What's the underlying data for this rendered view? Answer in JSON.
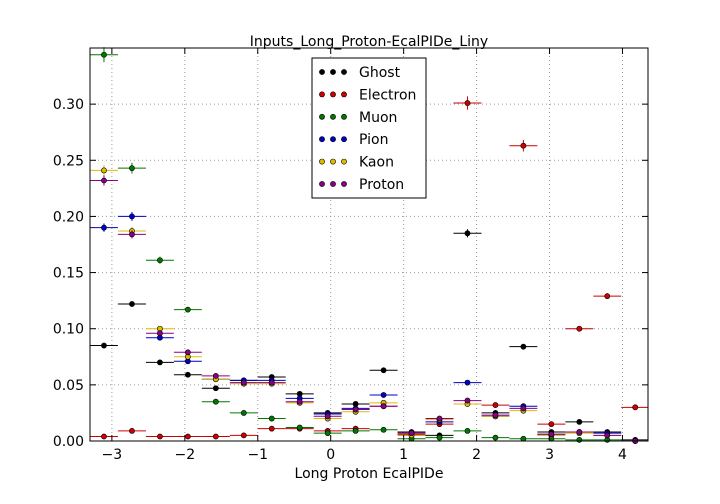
{
  "chart_data": {
    "type": "scatter",
    "title": "Inputs_Long_Proton-EcalPIDe_Liny",
    "xlabel": "Long Proton EcalPIDe",
    "ylabel": "",
    "xlim": [
      -3.3,
      4.35
    ],
    "ylim": [
      0.0,
      0.35
    ],
    "x_ticks": [
      -3,
      -2,
      -1,
      0,
      1,
      2,
      3,
      4
    ],
    "y_ticks": [
      0.0,
      0.05,
      0.1,
      0.15,
      0.2,
      0.25,
      0.3
    ],
    "y_tick_labels": [
      "0.00",
      "0.05",
      "0.10",
      "0.15",
      "0.20",
      "0.25",
      "0.30"
    ],
    "grid": true,
    "legend_position": "top-center",
    "bin_edges": [
      -3.3,
      -2.917,
      -2.533,
      -2.15,
      -1.767,
      -1.383,
      -1.0,
      -0.617,
      -0.233,
      0.15,
      0.533,
      0.917,
      1.3,
      1.683,
      2.067,
      2.45,
      2.833,
      3.217,
      3.6,
      3.983,
      4.367
    ],
    "series": [
      {
        "name": "Ghost",
        "color": "#000000",
        "values": [
          0.085,
          0.122,
          0.07,
          0.059,
          0.047,
          0.054,
          0.057,
          0.042,
          0.025,
          0.033,
          0.063,
          0.008,
          0.005,
          0.185,
          0.025,
          0.084,
          0.008,
          0.017,
          0.008,
          0.001
        ]
      },
      {
        "name": "Electron",
        "color": "#cc0000",
        "values": [
          0.004,
          0.009,
          0.004,
          0.004,
          0.004,
          0.005,
          0.011,
          0.011,
          0.009,
          0.011,
          0.031,
          0.006,
          0.015,
          0.301,
          0.032,
          0.263,
          0.015,
          0.1,
          0.129,
          0.03
        ]
      },
      {
        "name": "Muon",
        "color": "#007700",
        "values": [
          0.344,
          0.243,
          0.161,
          0.117,
          0.035,
          0.025,
          0.02,
          0.012,
          0.007,
          0.009,
          0.01,
          0.002,
          0.003,
          0.009,
          0.003,
          0.002,
          0.002,
          0.001,
          0.001,
          0.0
        ]
      },
      {
        "name": "Pion",
        "color": "#0000cc",
        "values": [
          0.19,
          0.2,
          0.092,
          0.071,
          0.055,
          0.054,
          0.054,
          0.038,
          0.024,
          0.029,
          0.041,
          0.005,
          0.017,
          0.052,
          0.022,
          0.031,
          0.006,
          0.008,
          0.007,
          0.0
        ]
      },
      {
        "name": "Kaon",
        "color": "#ddbb00",
        "values": [
          0.241,
          0.187,
          0.1,
          0.075,
          0.055,
          0.051,
          0.051,
          0.034,
          0.02,
          0.026,
          0.034,
          0.005,
          0.019,
          0.033,
          0.022,
          0.027,
          0.005,
          0.007,
          0.005,
          0.0
        ]
      },
      {
        "name": "Proton",
        "color": "#880088",
        "values": [
          0.232,
          0.184,
          0.096,
          0.079,
          0.058,
          0.052,
          0.052,
          0.035,
          0.022,
          0.028,
          0.031,
          0.007,
          0.02,
          0.036,
          0.023,
          0.029,
          0.006,
          0.008,
          0.005,
          0.0
        ]
      }
    ]
  }
}
